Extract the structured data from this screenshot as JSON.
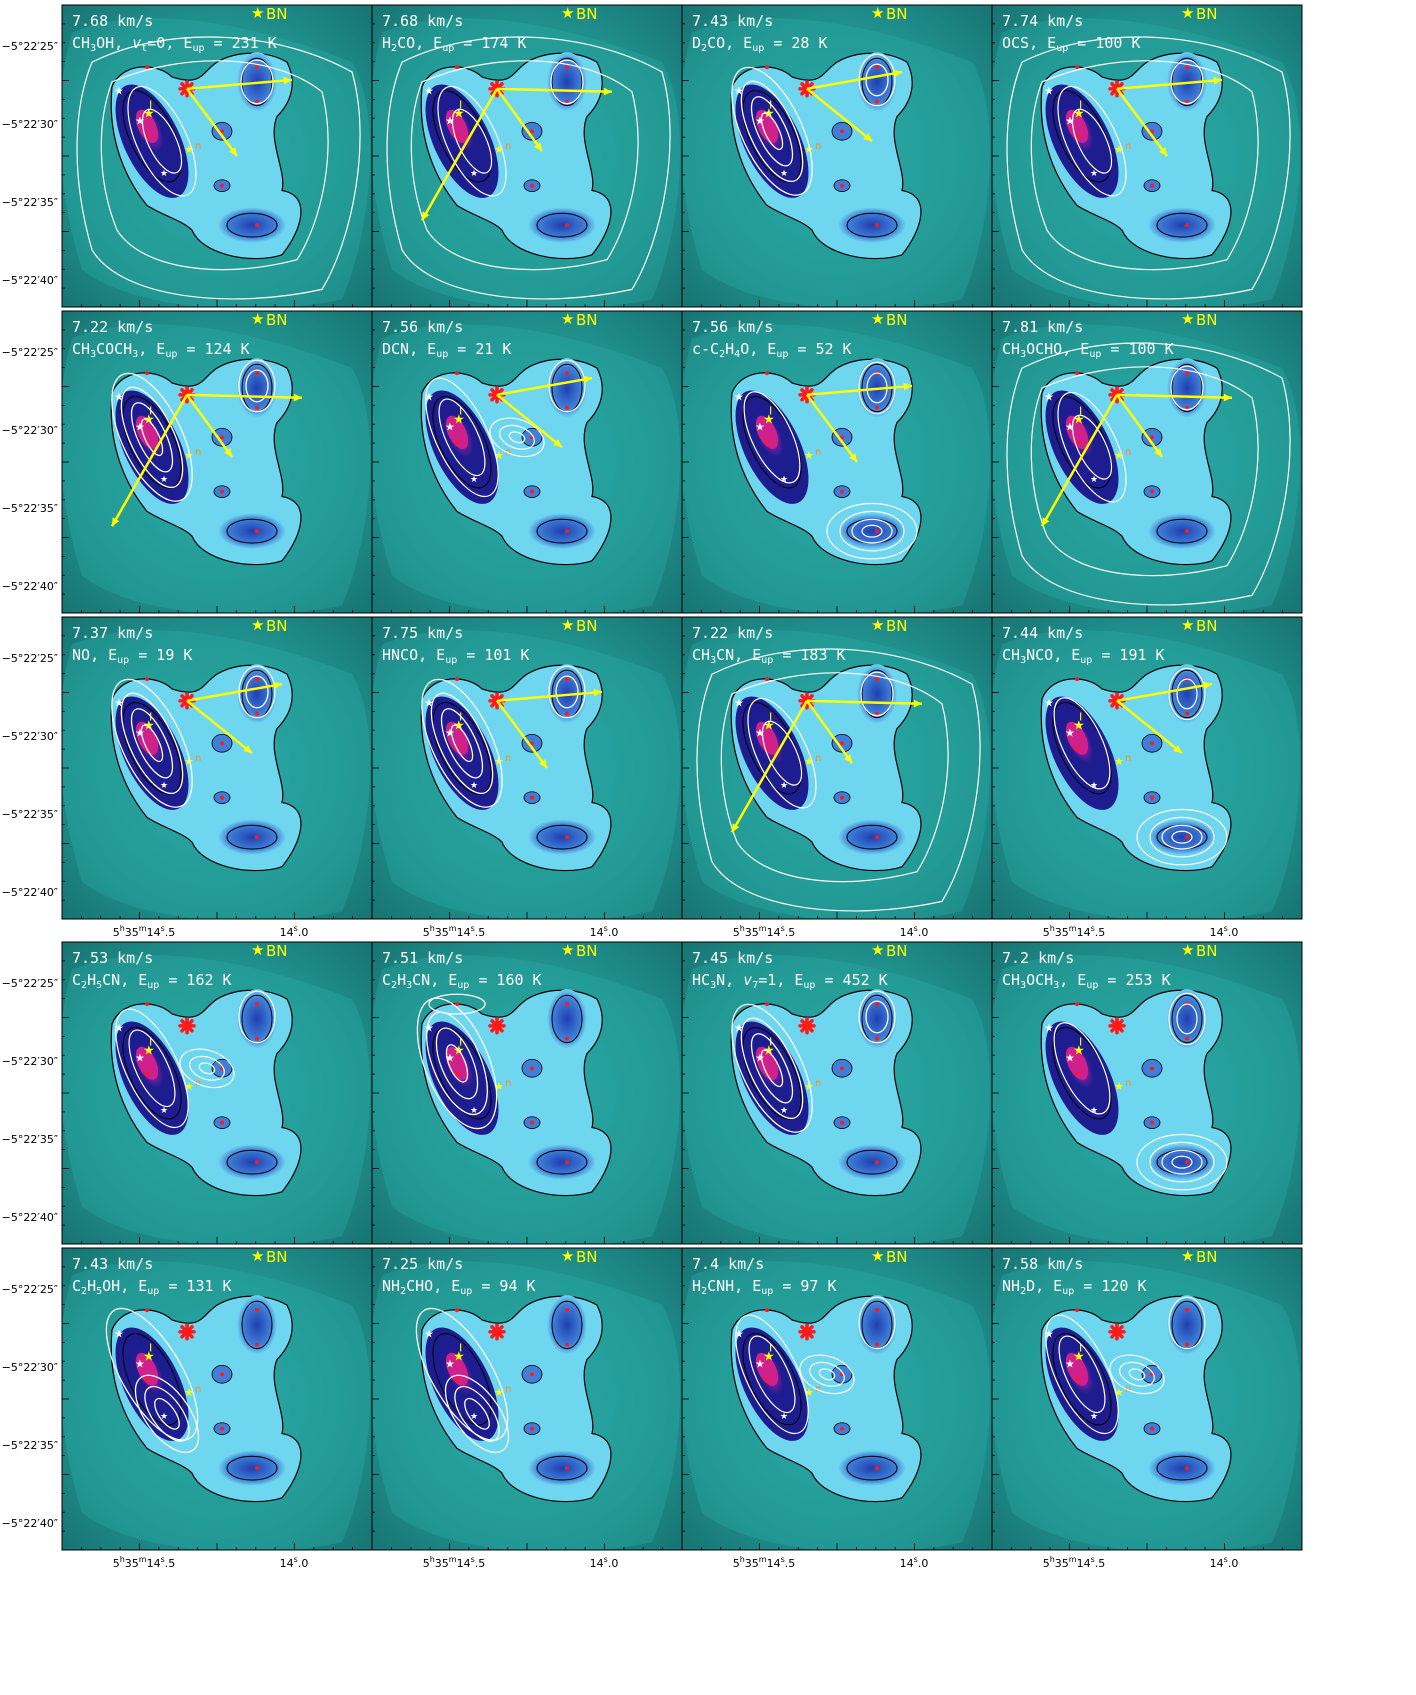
{
  "figure": {
    "y_ticks": [
      "−5°22′25″",
      "−5°22′30″",
      "−5°22′35″",
      "−5°22′40″"
    ],
    "x_ticks": [
      {
        "label": "5h35m14.5s",
        "h": "5",
        "m": "35",
        "s": "14",
        "frac": "5"
      },
      {
        "label": "14.0s",
        "s": "14",
        "frac": "0"
      }
    ],
    "bn_label": "BN",
    "colors": {
      "background": "#1f8f8c",
      "emission": "#6fd6f0",
      "core": "#1d1d8f",
      "peak": "#d0208c",
      "contour": "#000000",
      "white_contour": "#ffffff",
      "arrow": "#ffff00",
      "marker": "#ff1a1a"
    },
    "panels": [
      {
        "velocity": "7.68 km/s",
        "species": "CH3OH, vt=0",
        "e_up": "231 K",
        "arrows": true
      },
      {
        "velocity": "7.68 km/s",
        "species": "H2CO",
        "e_up": "174 K",
        "arrows": true
      },
      {
        "velocity": "7.43 km/s",
        "species": "D2CO",
        "e_up": "28 K",
        "arrows": true
      },
      {
        "velocity": "7.74 km/s",
        "species": "OCS",
        "e_up": "100 K",
        "arrows": true
      },
      {
        "velocity": "7.22 km/s",
        "species": "CH3COCH3",
        "e_up": "124 K",
        "arrows": true
      },
      {
        "velocity": "7.56 km/s",
        "species": "DCN",
        "e_up": "21 K",
        "arrows": true
      },
      {
        "velocity": "7.56 km/s",
        "species": "c-C2H4O",
        "e_up": "52 K",
        "arrows": true
      },
      {
        "velocity": "7.81 km/s",
        "species": "CH3OCHO",
        "e_up": "100 K",
        "arrows": true
      },
      {
        "velocity": "7.37 km/s",
        "species": "NO",
        "e_up": "19 K",
        "arrows": true
      },
      {
        "velocity": "7.75 km/s",
        "species": "HNCO",
        "e_up": "101 K",
        "arrows": true
      },
      {
        "velocity": "7.22 km/s",
        "species": "CH3CN",
        "e_up": "183 K",
        "arrows": true
      },
      {
        "velocity": "7.44 km/s",
        "species": "CH3NCO",
        "e_up": "191 K",
        "arrows": true
      },
      {
        "velocity": "7.53 km/s",
        "species": "C2H5CN",
        "e_up": "162 K",
        "arrows": false
      },
      {
        "velocity": "7.51 km/s",
        "species": "C2H3CN",
        "e_up": "160 K",
        "arrows": false
      },
      {
        "velocity": "7.45 km/s",
        "species": "HC3N, v7=1",
        "e_up": "452 K",
        "arrows": false
      },
      {
        "velocity": "7.2 km/s",
        "species": "CH3OCH3",
        "e_up": "253 K",
        "arrows": false
      },
      {
        "velocity": "7.43 km/s",
        "species": "C2H5OH",
        "e_up": "131 K",
        "arrows": false
      },
      {
        "velocity": "7.25 km/s",
        "species": "NH2CHO",
        "e_up": "94 K",
        "arrows": false
      },
      {
        "velocity": "7.4 km/s",
        "species": "H2CNH",
        "e_up": "97 K",
        "arrows": false
      },
      {
        "velocity": "7.58 km/s",
        "species": "NH2D",
        "e_up": "120 K",
        "arrows": false
      }
    ]
  }
}
